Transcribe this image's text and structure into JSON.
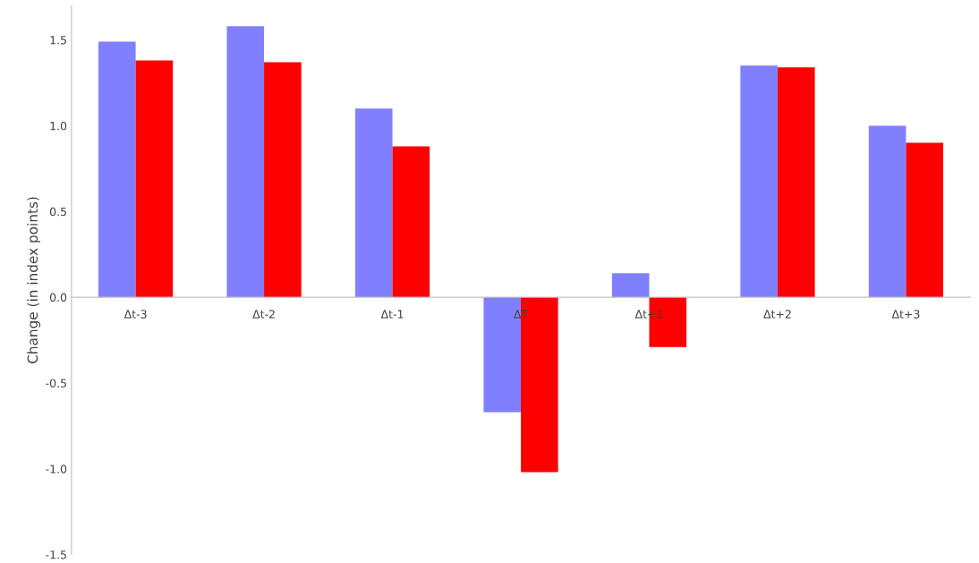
{
  "chart_data": {
    "type": "bar",
    "ylabel": "Change (in index points)",
    "categories": [
      "Δt-3",
      "Δt-2",
      "Δt-1",
      "ΔT",
      "Δt+1",
      "Δt+2",
      "Δt+3"
    ],
    "series": [
      {
        "color": "#8080ff",
        "values": [
          1.49,
          1.58,
          1.1,
          -0.67,
          0.14,
          1.35,
          1.0
        ]
      },
      {
        "color": "#ff0000",
        "values": [
          1.38,
          1.37,
          0.88,
          -1.02,
          -0.29,
          1.34,
          0.9
        ]
      }
    ],
    "ylim": [
      -1.5,
      1.7
    ],
    "yticks": [
      {
        "value": -1.5,
        "label": "-1.5"
      },
      {
        "value": -1.0,
        "label": "-1.0"
      },
      {
        "value": -0.5,
        "label": "-0.5"
      },
      {
        "value": 0.0,
        "label": "0.0"
      },
      {
        "value": 0.5,
        "label": "0.5"
      },
      {
        "value": 1.0,
        "label": "1.0"
      },
      {
        "value": 1.5,
        "label": "1.5"
      }
    ],
    "grid": false
  }
}
